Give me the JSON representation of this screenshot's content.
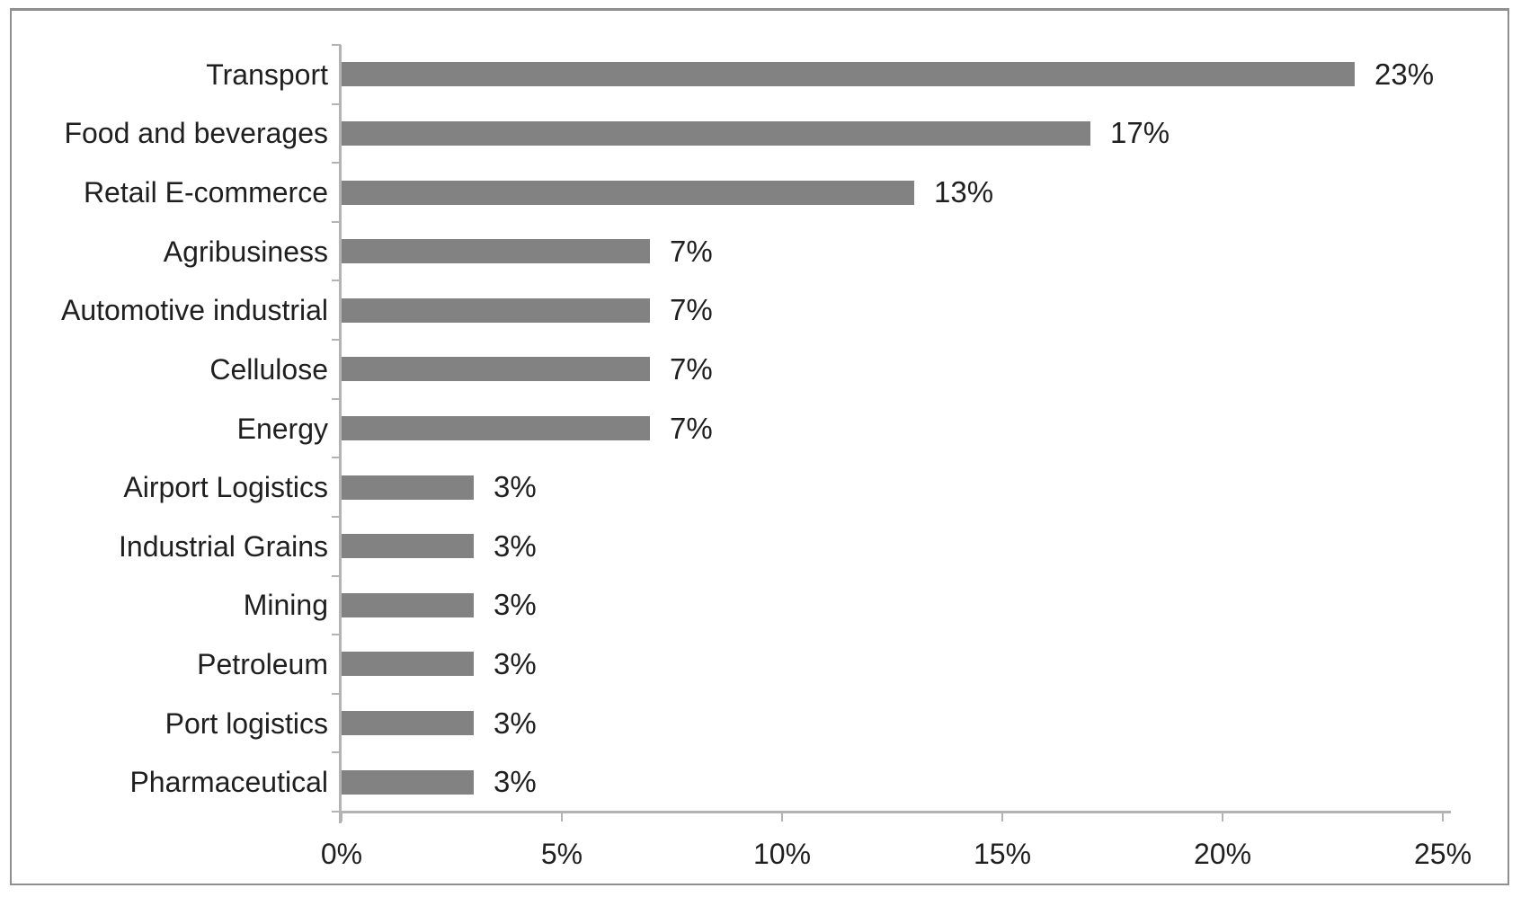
{
  "chart_data": {
    "type": "bar",
    "orientation": "horizontal",
    "title": "",
    "xlabel": "",
    "ylabel": "",
    "categories": [
      "Transport",
      "Food and beverages",
      "Retail E-commerce",
      "Agribusiness",
      "Automotive industrial",
      "Cellulose",
      "Energy",
      "Airport Logistics",
      "Industrial Grains",
      "Mining",
      "Petroleum",
      "Port logistics",
      "Pharmaceutical"
    ],
    "values": [
      23,
      17,
      13,
      7,
      7,
      7,
      7,
      3,
      3,
      3,
      3,
      3,
      3
    ],
    "value_labels": [
      "23%",
      "17%",
      "13%",
      "7%",
      "7%",
      "7%",
      "7%",
      "3%",
      "3%",
      "3%",
      "3%",
      "3%",
      "3%"
    ],
    "x_ticks": [
      "0%",
      "5%",
      "10%",
      "15%",
      "20%",
      "25%"
    ],
    "x_tick_values": [
      0,
      5,
      10,
      15,
      20,
      25
    ],
    "xlim": [
      0,
      25
    ],
    "grid": false,
    "legend": false,
    "colors": {
      "bar": "#828282",
      "axis": "#b3b3b3",
      "text": "#1f1f1f",
      "frame_border": "#8f8f8f",
      "background": "#ffffff"
    }
  }
}
